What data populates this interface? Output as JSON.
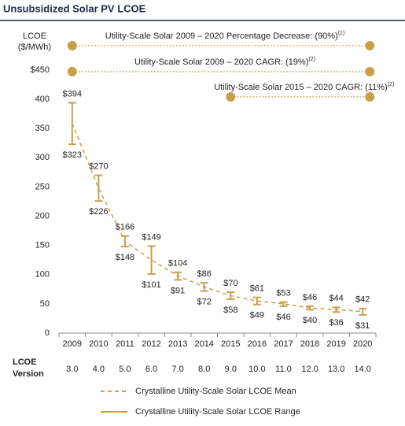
{
  "chart_data": {
    "type": "range_bar",
    "title": "Unsubsidized Solar PV LCOE",
    "ylabel_lines": [
      "LCOE",
      "($/MWh)"
    ],
    "categories": [
      "2009",
      "2010",
      "2011",
      "2012",
      "2013",
      "2014",
      "2015",
      "2016",
      "2017",
      "2018",
      "2019",
      "2020"
    ],
    "version_label": [
      "LCOE",
      "Version"
    ],
    "versions": [
      "3.0",
      "4.0",
      "5.0",
      "6.0",
      "7.0",
      "8.0",
      "9.0",
      "10.0",
      "11.0",
      "12.0",
      "13.0",
      "14.0"
    ],
    "ylim": [
      0,
      450
    ],
    "yticks": [
      0,
      50,
      100,
      150,
      200,
      250,
      300,
      350,
      400,
      {
        "value": 450,
        "label": "$450"
      }
    ],
    "series": [
      {
        "name": "Crystalline Utility-Scale Solar LCOE Mean",
        "color": "#c9a04a",
        "style": "dashed",
        "values": [
          359,
          248,
          157,
          125,
          98,
          79,
          64,
          55,
          50,
          43,
          40,
          37
        ]
      },
      {
        "name": "Crystalline Utility-Scale Solar LCOE Range",
        "color": "#c9a04a",
        "high": [
          394,
          270,
          166,
          149,
          104,
          86,
          70,
          61,
          53,
          46,
          44,
          42
        ],
        "high_labels": [
          "$394",
          "$270",
          "$166",
          "$149",
          "$104",
          "$86",
          "$70",
          "$61",
          "$53",
          "$46",
          "$44",
          "$42"
        ],
        "low": [
          323,
          226,
          148,
          101,
          91,
          72,
          58,
          49,
          46,
          40,
          36,
          31
        ],
        "low_labels": [
          "$323",
          "$226",
          "$148",
          "$101",
          "$91",
          "$72",
          "$58",
          "$49",
          "$46",
          "$40",
          "$36",
          "$31"
        ]
      }
    ],
    "annotations": [
      {
        "text": "Utility-Scale Solar 2009 – 2020 Percentage Decrease: (90%)",
        "note": "(1)"
      },
      {
        "text": "Utility-Scale Solar 2009 – 2020 CAGR: (19%)",
        "note": "(2)"
      },
      {
        "text": "Utility-Scale Solar 2015 – 2020 CAGR: (11%)",
        "note": "(2)"
      }
    ]
  }
}
